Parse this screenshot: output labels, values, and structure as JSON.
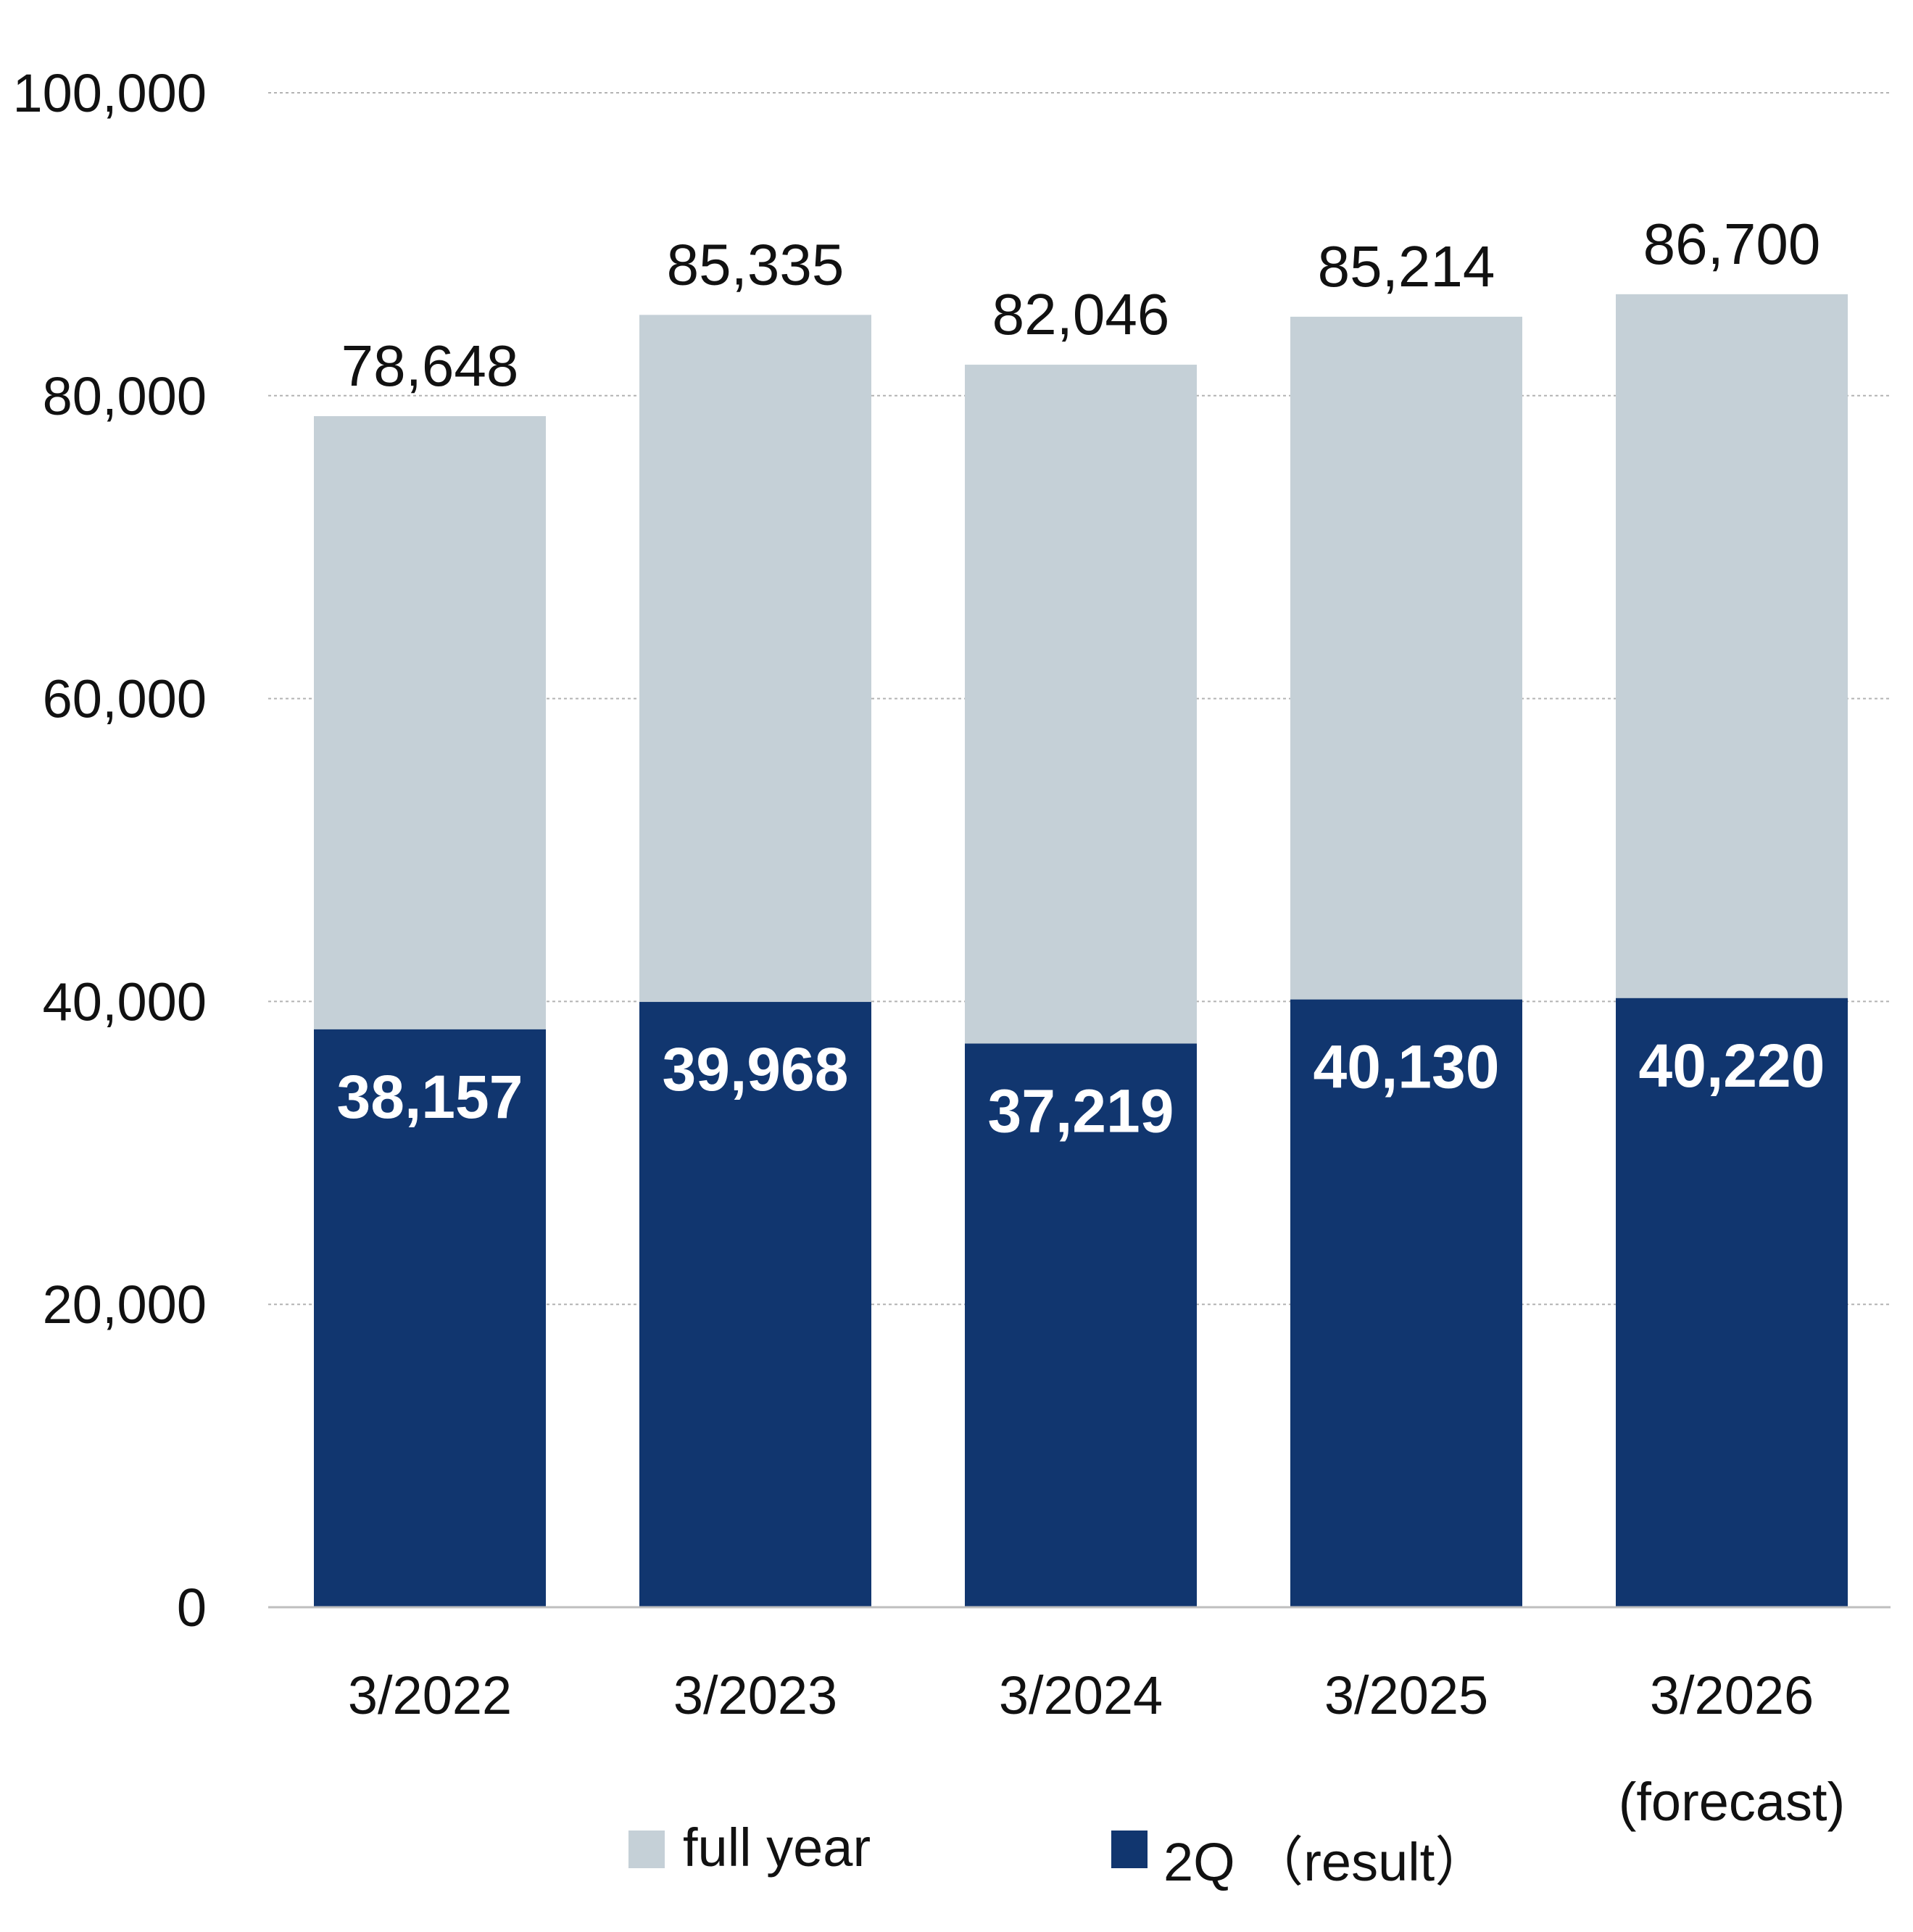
{
  "chart_data": {
    "type": "bar",
    "title": "",
    "xlabel": "",
    "ylabel": "",
    "ylim": [
      0,
      100000
    ],
    "yticks": [
      0,
      20000,
      40000,
      60000,
      80000,
      100000
    ],
    "ytick_labels": [
      "0",
      "20,000",
      "40,000",
      "60,000",
      "80,000",
      "100,000"
    ],
    "grid": true,
    "categories": [
      "3/2022",
      "3/2023",
      "3/2024",
      "3/2025",
      "3/2026"
    ],
    "category_sublabels": [
      "",
      "",
      "",
      "",
      "(forecast)"
    ],
    "series": [
      {
        "name": "full year",
        "color": "#c5d0d7",
        "values": [
          78648,
          85335,
          82046,
          85214,
          86700
        ],
        "labels": [
          "78,648",
          "85,335",
          "82,046",
          "85,214",
          "86,700"
        ]
      },
      {
        "name": "2Q （result）",
        "color": "#11366f",
        "values": [
          38157,
          39968,
          37219,
          40130,
          40220
        ],
        "labels": [
          "38,157",
          "39,968",
          "37,219",
          "40,130",
          "40,220"
        ]
      }
    ],
    "legend": {
      "position": "bottom",
      "items": [
        {
          "label": "full year",
          "color": "#c5d0d7"
        },
        {
          "label": "2Q （result）",
          "color": "#11366f"
        }
      ]
    }
  }
}
